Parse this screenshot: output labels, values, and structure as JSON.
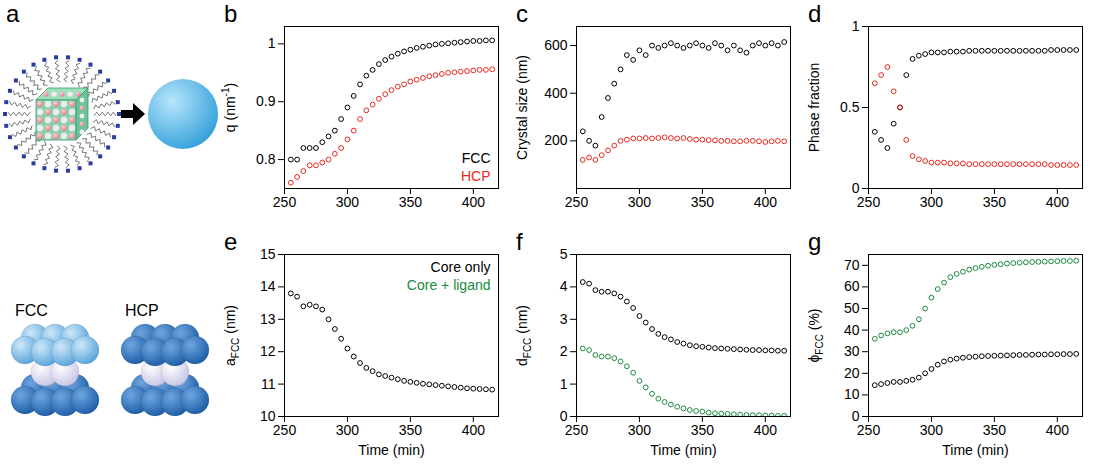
{
  "diagram": {
    "letter": "a",
    "labels": [
      "FCC",
      "HCP"
    ]
  },
  "chart_data": [
    {
      "panel": "b",
      "type": "scatter",
      "marker": "circle",
      "legend": "lower right",
      "ylabel": [
        {
          "text": "q (nm"
        },
        {
          "text": "-1",
          "sup": true
        },
        {
          "text": ")"
        }
      ],
      "xlim": [
        250,
        420
      ],
      "xticks": [
        250,
        300,
        350,
        400
      ],
      "ylim": [
        0.75,
        1.03
      ],
      "yticks": [
        0.8,
        0.9,
        1
      ],
      "x": [
        255,
        260,
        265,
        270,
        275,
        280,
        285,
        290,
        295,
        300,
        305,
        310,
        315,
        320,
        325,
        330,
        335,
        340,
        345,
        350,
        355,
        360,
        365,
        370,
        375,
        380,
        385,
        390,
        395,
        400,
        405,
        410,
        415
      ],
      "series": [
        {
          "name": "FCC",
          "color": "#000000",
          "values": [
            0.8,
            0.8,
            0.82,
            0.82,
            0.82,
            0.83,
            0.84,
            0.85,
            0.87,
            0.89,
            0.91,
            0.93,
            0.945,
            0.955,
            0.965,
            0.972,
            0.978,
            0.983,
            0.987,
            0.99,
            0.993,
            0.995,
            0.997,
            0.999,
            1.0,
            1.001,
            1.002,
            1.003,
            1.004,
            1.005,
            1.005,
            1.006,
            1.006
          ]
        },
        {
          "name": "HCP",
          "color": "#e8281e",
          "values": [
            0.76,
            0.77,
            0.78,
            0.79,
            0.79,
            0.795,
            0.8,
            0.81,
            0.82,
            0.835,
            0.85,
            0.87,
            0.885,
            0.895,
            0.905,
            0.913,
            0.92,
            0.926,
            0.93,
            0.935,
            0.938,
            0.941,
            0.944,
            0.946,
            0.948,
            0.95,
            0.951,
            0.952,
            0.953,
            0.954,
            0.955,
            0.955,
            0.956
          ]
        }
      ]
    },
    {
      "panel": "c",
      "type": "scatter",
      "marker": "circle",
      "ylabel": [
        {
          "text": "Crystal size (nm)"
        }
      ],
      "xlim": [
        250,
        420
      ],
      "xticks": [
        250,
        300,
        350,
        400
      ],
      "ylim": [
        0,
        680
      ],
      "yticks": [
        200,
        400,
        600
      ],
      "x": [
        255,
        260,
        265,
        270,
        275,
        280,
        285,
        290,
        295,
        300,
        305,
        310,
        315,
        320,
        325,
        330,
        335,
        340,
        345,
        350,
        355,
        360,
        365,
        370,
        375,
        380,
        385,
        390,
        395,
        400,
        405,
        410,
        415
      ],
      "series": [
        {
          "name": "FCC",
          "color": "#000000",
          "values": [
            240,
            200,
            180,
            300,
            380,
            440,
            500,
            560,
            540,
            580,
            560,
            600,
            590,
            600,
            610,
            600,
            590,
            600,
            610,
            600,
            590,
            610,
            600,
            580,
            600,
            580,
            570,
            600,
            610,
            600,
            610,
            600,
            615
          ]
        },
        {
          "name": "HCP",
          "color": "#e8281e",
          "values": [
            120,
            130,
            120,
            140,
            160,
            180,
            200,
            205,
            210,
            210,
            212,
            210,
            212,
            215,
            212,
            210,
            212,
            208,
            205,
            205,
            203,
            202,
            200,
            200,
            198,
            198,
            200,
            200,
            198,
            195,
            198,
            200,
            198
          ]
        }
      ]
    },
    {
      "panel": "d",
      "type": "scatter",
      "marker": "circle",
      "ylabel": [
        {
          "text": "Phase fraction"
        }
      ],
      "xlim": [
        250,
        420
      ],
      "xticks": [
        250,
        300,
        350,
        400
      ],
      "ylim": [
        0,
        1
      ],
      "yticks": [
        0,
        0.5,
        1
      ],
      "x": [
        255,
        260,
        265,
        270,
        275,
        280,
        285,
        290,
        295,
        300,
        305,
        310,
        315,
        320,
        325,
        330,
        335,
        340,
        345,
        350,
        355,
        360,
        365,
        370,
        375,
        380,
        385,
        390,
        395,
        400,
        405,
        410,
        415
      ],
      "series": [
        {
          "name": "FCC",
          "color": "#000000",
          "values": [
            0.35,
            0.3,
            0.25,
            0.4,
            0.5,
            0.7,
            0.8,
            0.82,
            0.83,
            0.84,
            0.84,
            0.84,
            0.845,
            0.845,
            0.845,
            0.85,
            0.85,
            0.85,
            0.85,
            0.85,
            0.85,
            0.85,
            0.85,
            0.85,
            0.85,
            0.85,
            0.85,
            0.85,
            0.855,
            0.855,
            0.855,
            0.855,
            0.855
          ]
        },
        {
          "name": "HCP",
          "color": "#e8281e",
          "values": [
            0.65,
            0.7,
            0.75,
            0.6,
            0.5,
            0.3,
            0.2,
            0.18,
            0.17,
            0.16,
            0.16,
            0.16,
            0.155,
            0.155,
            0.155,
            0.15,
            0.15,
            0.15,
            0.15,
            0.15,
            0.15,
            0.15,
            0.15,
            0.15,
            0.15,
            0.15,
            0.15,
            0.15,
            0.145,
            0.145,
            0.145,
            0.145,
            0.145
          ]
        }
      ]
    },
    {
      "panel": "e",
      "type": "scatter",
      "marker": "circle",
      "legend": "upper right",
      "xlabel": "Time (min)",
      "ylabel": [
        {
          "text": "a"
        },
        {
          "text": "FCC",
          "sub": true
        },
        {
          "text": " (nm)"
        }
      ],
      "xlim": [
        250,
        420
      ],
      "xticks": [
        250,
        300,
        350,
        400
      ],
      "ylim": [
        10,
        15
      ],
      "yticks": [
        10,
        11,
        12,
        13,
        14,
        15
      ],
      "x": [
        255,
        260,
        265,
        270,
        275,
        280,
        285,
        290,
        295,
        300,
        305,
        310,
        315,
        320,
        325,
        330,
        335,
        340,
        345,
        350,
        355,
        360,
        365,
        370,
        375,
        380,
        385,
        390,
        395,
        400,
        405,
        410,
        415
      ],
      "series": [
        {
          "name": "Core only",
          "color": "#000000",
          "values": [
            13.8,
            13.7,
            13.4,
            13.45,
            13.4,
            13.3,
            13.0,
            12.7,
            12.4,
            12.1,
            11.85,
            11.65,
            11.5,
            11.4,
            11.3,
            11.25,
            11.2,
            11.15,
            11.1,
            11.07,
            11.04,
            11.01,
            10.99,
            10.97,
            10.95,
            10.93,
            10.91,
            10.89,
            10.87,
            10.86,
            10.85,
            10.84,
            10.83
          ]
        },
        {
          "name": "Core + ligand",
          "color": "#1a8a3e",
          "values": [
            null,
            null,
            null,
            null,
            null,
            null,
            null,
            null,
            null,
            null,
            null,
            null,
            null,
            null,
            null,
            null,
            null,
            null,
            null,
            null,
            null,
            null,
            null,
            null,
            null,
            null,
            null,
            null,
            null,
            null,
            null,
            null,
            null
          ]
        }
      ]
    },
    {
      "panel": "f",
      "type": "scatter",
      "marker": "circle",
      "xlabel": "Time (min)",
      "ylabel": [
        {
          "text": "d"
        },
        {
          "text": "FCC",
          "sub": true
        },
        {
          "text": " (nm)"
        }
      ],
      "xlim": [
        250,
        420
      ],
      "xticks": [
        250,
        300,
        350,
        400
      ],
      "ylim": [
        0,
        5
      ],
      "yticks": [
        0,
        1,
        2,
        3,
        4,
        5
      ],
      "x": [
        255,
        260,
        265,
        270,
        275,
        280,
        285,
        290,
        295,
        300,
        305,
        310,
        315,
        320,
        325,
        330,
        335,
        340,
        345,
        350,
        355,
        360,
        365,
        370,
        375,
        380,
        385,
        390,
        395,
        400,
        405,
        410,
        415
      ],
      "series": [
        {
          "name": "Core only",
          "color": "#000000",
          "values": [
            4.15,
            4.1,
            3.9,
            3.85,
            3.85,
            3.8,
            3.7,
            3.55,
            3.35,
            3.1,
            2.9,
            2.7,
            2.55,
            2.45,
            2.38,
            2.3,
            2.25,
            2.2,
            2.17,
            2.15,
            2.13,
            2.11,
            2.1,
            2.09,
            2.08,
            2.07,
            2.06,
            2.05,
            2.05,
            2.04,
            2.04,
            2.03,
            2.03
          ]
        },
        {
          "name": "Core + ligand",
          "color": "#1a8a3e",
          "values": [
            2.1,
            2.05,
            1.9,
            1.85,
            1.85,
            1.8,
            1.7,
            1.55,
            1.35,
            1.1,
            0.9,
            0.7,
            0.55,
            0.45,
            0.37,
            0.3,
            0.25,
            0.2,
            0.17,
            0.15,
            0.12,
            0.1,
            0.09,
            0.08,
            0.07,
            0.06,
            0.05,
            0.04,
            0.04,
            0.03,
            0.03,
            0.02,
            0.02
          ]
        }
      ]
    },
    {
      "panel": "g",
      "type": "scatter",
      "marker": "circle",
      "xlabel": "Time (min)",
      "ylabel": [
        {
          "text": "ϕ"
        },
        {
          "text": "FCC",
          "sub": true
        },
        {
          "text": " (%)"
        }
      ],
      "xlim": [
        250,
        420
      ],
      "xticks": [
        250,
        300,
        350,
        400
      ],
      "ylim": [
        0,
        75
      ],
      "yticks": [
        0,
        10,
        20,
        30,
        40,
        50,
        60,
        70
      ],
      "x": [
        255,
        260,
        265,
        270,
        275,
        280,
        285,
        290,
        295,
        300,
        305,
        310,
        315,
        320,
        325,
        330,
        335,
        340,
        345,
        350,
        355,
        360,
        365,
        370,
        375,
        380,
        385,
        390,
        395,
        400,
        405,
        410,
        415
      ],
      "series": [
        {
          "name": "Core only",
          "color": "#000000",
          "values": [
            14.5,
            15,
            15.5,
            16,
            16,
            16.5,
            17,
            18,
            20,
            22,
            24,
            25.5,
            26.3,
            26.8,
            27.2,
            27.5,
            27.7,
            27.9,
            28,
            28.1,
            28.2,
            28.3,
            28.4,
            28.5,
            28.5,
            28.6,
            28.7,
            28.7,
            28.8,
            28.8,
            28.9,
            28.9,
            29
          ]
        },
        {
          "name": "Core + ligand",
          "color": "#1a8a3e",
          "values": [
            36,
            37.5,
            38.5,
            39,
            39,
            40,
            42,
            45,
            50,
            55,
            59,
            62,
            64.5,
            66,
            67,
            68,
            68.7,
            69.3,
            69.8,
            70.2,
            70.5,
            70.8,
            71,
            71.2,
            71.4,
            71.5,
            71.6,
            71.7,
            71.8,
            71.9,
            72,
            72,
            72.1
          ]
        }
      ]
    }
  ]
}
